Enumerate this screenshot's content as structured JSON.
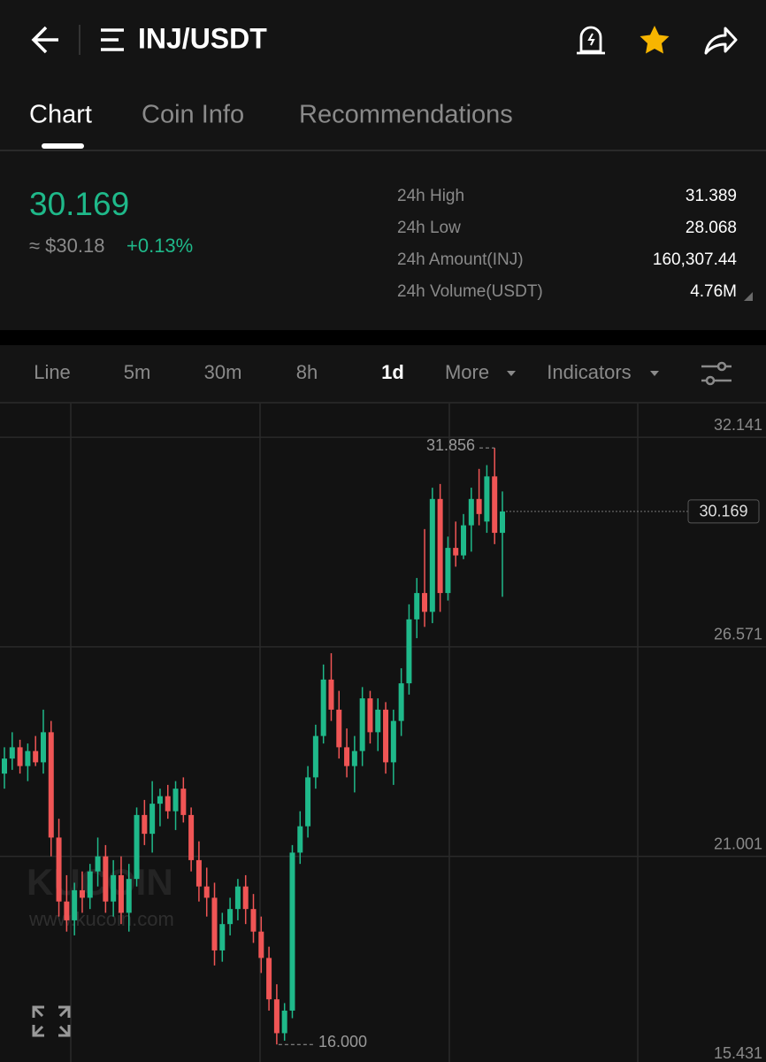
{
  "header": {
    "title": "INJ/USDT"
  },
  "tabs": [
    "Chart",
    "Coin Info",
    "Recommendations"
  ],
  "price": {
    "last": "30.169",
    "usd": "≈ $30.18",
    "change": "+0.13%"
  },
  "stats": [
    {
      "label": "24h High",
      "value": "31.389"
    },
    {
      "label": "24h Low",
      "value": "28.068"
    },
    {
      "label": "24h Amount(INJ)",
      "value": "160,307.44"
    },
    {
      "label": "24h Volume(USDT)",
      "value": "4.76M"
    }
  ],
  "intervals": [
    "Line",
    "5m",
    "30m",
    "8h",
    "1d",
    "More",
    "Indicators"
  ],
  "watermark": {
    "logo": "KUCOIN",
    "url": "www.kucoin.com"
  },
  "chart_data": {
    "type": "candlestick",
    "up_color": "#1fb98a",
    "down_color": "#f05555",
    "open": [
      23.2,
      23.6,
      23.9,
      23.4,
      23.8,
      23.5,
      24.3,
      21.5,
      19.8,
      19.3,
      20.1,
      19.9,
      20.6,
      21.0,
      19.8,
      20.5,
      19.5,
      20.4,
      22.1,
      21.6,
      22.4,
      22.6,
      22.2,
      22.8,
      22.1,
      20.9,
      20.2,
      19.9,
      18.5,
      19.2,
      19.6,
      20.2,
      19.6,
      19.0,
      18.3,
      17.2,
      16.3,
      16.9,
      21.1,
      21.8,
      23.1,
      24.2,
      25.7,
      24.9,
      23.9,
      23.4,
      23.8,
      25.2,
      24.3,
      24.9,
      23.5,
      24.6,
      25.6,
      27.3,
      28.0,
      27.5,
      30.5,
      28.0,
      29.2,
      29.0,
      29.8,
      30.5,
      29.9,
      31.1,
      29.6
    ],
    "high": [
      23.9,
      24.3,
      24.1,
      24.0,
      24.2,
      24.9,
      24.6,
      22.0,
      20.5,
      20.3,
      20.6,
      20.8,
      21.5,
      21.3,
      20.9,
      21.0,
      20.8,
      22.3,
      22.5,
      23.0,
      22.8,
      22.9,
      23.0,
      23.1,
      22.3,
      21.4,
      20.7,
      20.3,
      19.5,
      19.9,
      20.4,
      20.5,
      20.0,
      19.4,
      18.6,
      17.6,
      17.1,
      21.3,
      22.2,
      23.4,
      24.5,
      26.1,
      26.4,
      25.4,
      24.4,
      24.2,
      25.5,
      25.4,
      25.2,
      25.1,
      24.9,
      26.0,
      27.7,
      28.4,
      29.7,
      30.8,
      30.9,
      29.5,
      29.9,
      30.1,
      30.8,
      31.3,
      31.4,
      31.856,
      30.7
    ],
    "low": [
      22.8,
      23.3,
      23.2,
      23.0,
      23.4,
      23.2,
      21.0,
      19.4,
      19.0,
      18.9,
      19.5,
      19.6,
      20.2,
      19.5,
      19.4,
      19.2,
      19.0,
      20.2,
      21.3,
      21.1,
      21.8,
      22.0,
      21.7,
      21.9,
      20.6,
      19.8,
      19.4,
      18.1,
      18.2,
      18.9,
      19.3,
      19.2,
      18.7,
      17.9,
      16.9,
      16.0,
      16.1,
      16.7,
      20.8,
      21.5,
      22.8,
      24.0,
      24.6,
      23.6,
      23.1,
      22.7,
      23.4,
      24.0,
      23.8,
      23.2,
      22.9,
      24.2,
      25.3,
      26.8,
      27.1,
      27.2,
      27.5,
      27.8,
      28.7,
      28.9,
      29.1,
      29.8,
      29.6,
      29.3,
      27.9
    ],
    "close": [
      23.6,
      23.9,
      23.4,
      23.8,
      23.5,
      24.3,
      21.5,
      19.8,
      19.3,
      20.1,
      19.9,
      20.6,
      21.0,
      19.8,
      20.5,
      19.5,
      20.4,
      22.1,
      21.6,
      22.4,
      22.6,
      22.2,
      22.8,
      22.1,
      20.9,
      20.2,
      19.9,
      18.5,
      19.2,
      19.6,
      20.2,
      19.6,
      19.0,
      18.3,
      17.2,
      16.3,
      16.9,
      21.1,
      21.8,
      23.1,
      24.2,
      25.7,
      24.9,
      23.9,
      23.4,
      23.8,
      25.2,
      24.3,
      24.9,
      23.5,
      24.6,
      25.6,
      27.3,
      28.0,
      27.5,
      30.5,
      28.0,
      29.2,
      29.0,
      29.8,
      30.5,
      30.1,
      31.1,
      29.6,
      30.169
    ],
    "ylim": [
      15.44,
      33.06
    ],
    "yticks": [
      {
        "value": 32.141,
        "label": "32.141"
      },
      {
        "value": 26.571,
        "label": "26.571"
      },
      {
        "value": 21.001,
        "label": "21.001"
      },
      {
        "value": 15.431,
        "label": "15.431"
      }
    ],
    "last_price": {
      "value": 30.169,
      "label": "30.169"
    },
    "max_label": {
      "value": 31.856,
      "label": "31.856"
    },
    "min_label": {
      "value": 16,
      "label": "16.000"
    }
  }
}
